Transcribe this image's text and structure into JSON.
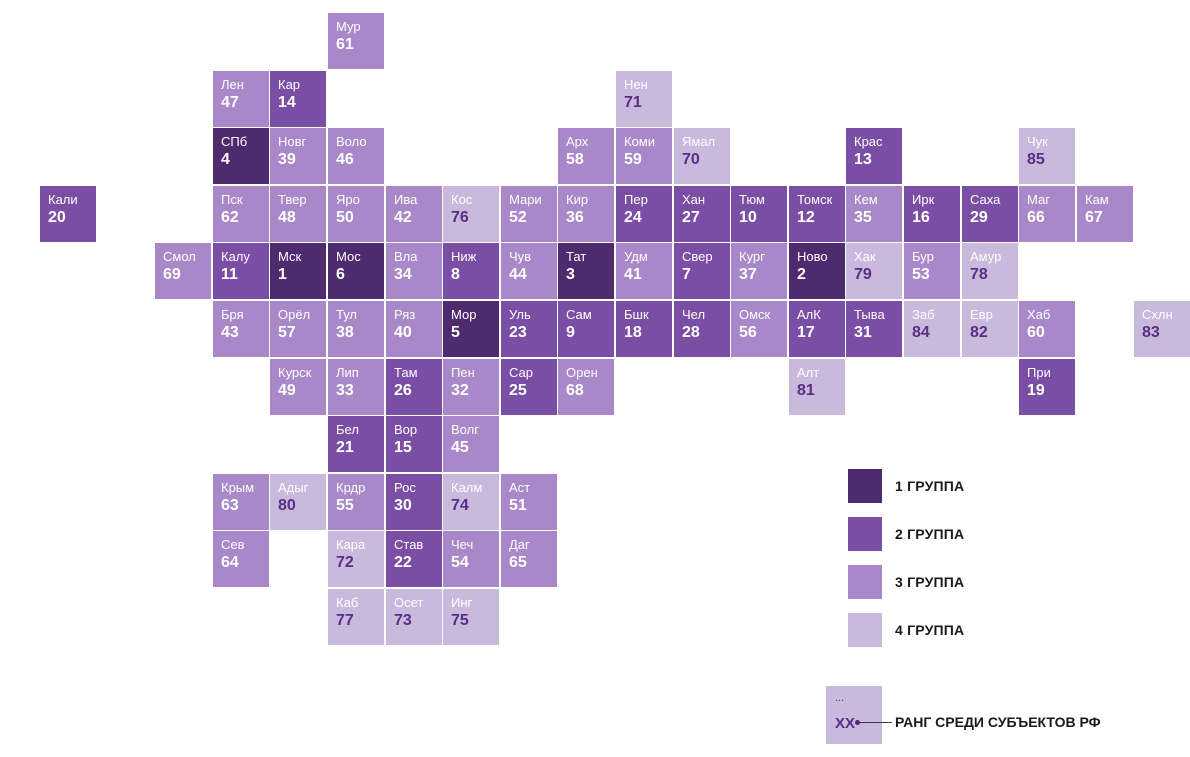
{
  "colors": {
    "group_1": "#4e2a6e",
    "group_2": "#7b4ea5",
    "group_3": "#a888c8",
    "group_4": "#c9b9dc"
  },
  "regions": [
    {
      "abbr": "Мур",
      "rank": "61",
      "group": 3,
      "col": 5,
      "row": 0
    },
    {
      "abbr": "Лен",
      "rank": "47",
      "group": 3,
      "col": 3,
      "row": 1
    },
    {
      "abbr": "Кар",
      "rank": "14",
      "group": 2,
      "col": 4,
      "row": 1
    },
    {
      "abbr": "Нен",
      "rank": "71",
      "group": 4,
      "col": 10,
      "row": 1
    },
    {
      "abbr": "СПб",
      "rank": "4",
      "group": 1,
      "col": 3,
      "row": 2
    },
    {
      "abbr": "Новг",
      "rank": "39",
      "group": 3,
      "col": 4,
      "row": 2
    },
    {
      "abbr": "Воло",
      "rank": "46",
      "group": 3,
      "col": 5,
      "row": 2
    },
    {
      "abbr": "Арх",
      "rank": "58",
      "group": 3,
      "col": 9,
      "row": 2
    },
    {
      "abbr": "Коми",
      "rank": "59",
      "group": 3,
      "col": 10,
      "row": 2
    },
    {
      "abbr": "Ямал",
      "rank": "70",
      "group": 4,
      "col": 11,
      "row": 2
    },
    {
      "abbr": "Крас",
      "rank": "13",
      "group": 2,
      "col": 14,
      "row": 2
    },
    {
      "abbr": "Чук",
      "rank": "85",
      "group": 4,
      "col": 17,
      "row": 2
    },
    {
      "abbr": "Кали",
      "rank": "20",
      "group": 2,
      "col": 0,
      "row": 3
    },
    {
      "abbr": "Пск",
      "rank": "62",
      "group": 3,
      "col": 3,
      "row": 3
    },
    {
      "abbr": "Твер",
      "rank": "48",
      "group": 3,
      "col": 4,
      "row": 3
    },
    {
      "abbr": "Яро",
      "rank": "50",
      "group": 3,
      "col": 5,
      "row": 3
    },
    {
      "abbr": "Ива",
      "rank": "42",
      "group": 3,
      "col": 6,
      "row": 3
    },
    {
      "abbr": "Кос",
      "rank": "76",
      "group": 4,
      "col": 7,
      "row": 3
    },
    {
      "abbr": "Мари",
      "rank": "52",
      "group": 3,
      "col": 8,
      "row": 3
    },
    {
      "abbr": "Кир",
      "rank": "36",
      "group": 3,
      "col": 9,
      "row": 3
    },
    {
      "abbr": "Пер",
      "rank": "24",
      "group": 2,
      "col": 10,
      "row": 3
    },
    {
      "abbr": "Хан",
      "rank": "27",
      "group": 2,
      "col": 11,
      "row": 3
    },
    {
      "abbr": "Тюм",
      "rank": "10",
      "group": 2,
      "col": 12,
      "row": 3
    },
    {
      "abbr": "Томск",
      "rank": "12",
      "group": 2,
      "col": 13,
      "row": 3
    },
    {
      "abbr": "Кем",
      "rank": "35",
      "group": 3,
      "col": 14,
      "row": 3
    },
    {
      "abbr": "Ирк",
      "rank": "16",
      "group": 2,
      "col": 15,
      "row": 3
    },
    {
      "abbr": "Саха",
      "rank": "29",
      "group": 2,
      "col": 16,
      "row": 3
    },
    {
      "abbr": "Маг",
      "rank": "66",
      "group": 3,
      "col": 17,
      "row": 3
    },
    {
      "abbr": "Кам",
      "rank": "67",
      "group": 3,
      "col": 18,
      "row": 3
    },
    {
      "abbr": "Смол",
      "rank": "69",
      "group": 3,
      "col": 2,
      "row": 4
    },
    {
      "abbr": "Калу",
      "rank": "11",
      "group": 2,
      "col": 3,
      "row": 4
    },
    {
      "abbr": "Мск",
      "rank": "1",
      "group": 1,
      "col": 4,
      "row": 4
    },
    {
      "abbr": "Мос",
      "rank": "6",
      "group": 1,
      "col": 5,
      "row": 4
    },
    {
      "abbr": "Вла",
      "rank": "34",
      "group": 3,
      "col": 6,
      "row": 4
    },
    {
      "abbr": "Ниж",
      "rank": "8",
      "group": 2,
      "col": 7,
      "row": 4
    },
    {
      "abbr": "Чув",
      "rank": "44",
      "group": 3,
      "col": 8,
      "row": 4
    },
    {
      "abbr": "Тат",
      "rank": "3",
      "group": 1,
      "col": 9,
      "row": 4
    },
    {
      "abbr": "Удм",
      "rank": "41",
      "group": 3,
      "col": 10,
      "row": 4
    },
    {
      "abbr": "Свер",
      "rank": "7",
      "group": 2,
      "col": 11,
      "row": 4
    },
    {
      "abbr": "Кург",
      "rank": "37",
      "group": 3,
      "col": 12,
      "row": 4
    },
    {
      "abbr": "Ново",
      "rank": "2",
      "group": 1,
      "col": 13,
      "row": 4
    },
    {
      "abbr": "Хак",
      "rank": "79",
      "group": 4,
      "col": 14,
      "row": 4
    },
    {
      "abbr": "Бур",
      "rank": "53",
      "group": 3,
      "col": 15,
      "row": 4
    },
    {
      "abbr": "Амур",
      "rank": "78",
      "group": 4,
      "col": 16,
      "row": 4
    },
    {
      "abbr": "Бря",
      "rank": "43",
      "group": 3,
      "col": 3,
      "row": 5
    },
    {
      "abbr": "Орёл",
      "rank": "57",
      "group": 3,
      "col": 4,
      "row": 5
    },
    {
      "abbr": "Тул",
      "rank": "38",
      "group": 3,
      "col": 5,
      "row": 5
    },
    {
      "abbr": "Ряз",
      "rank": "40",
      "group": 3,
      "col": 6,
      "row": 5
    },
    {
      "abbr": "Мор",
      "rank": "5",
      "group": 1,
      "col": 7,
      "row": 5
    },
    {
      "abbr": "Уль",
      "rank": "23",
      "group": 2,
      "col": 8,
      "row": 5
    },
    {
      "abbr": "Сам",
      "rank": "9",
      "group": 2,
      "col": 9,
      "row": 5
    },
    {
      "abbr": "Бшк",
      "rank": "18",
      "group": 2,
      "col": 10,
      "row": 5
    },
    {
      "abbr": "Чел",
      "rank": "28",
      "group": 2,
      "col": 11,
      "row": 5
    },
    {
      "abbr": "Омск",
      "rank": "56",
      "group": 3,
      "col": 12,
      "row": 5
    },
    {
      "abbr": "АлК",
      "rank": "17",
      "group": 2,
      "col": 13,
      "row": 5
    },
    {
      "abbr": "Тыва",
      "rank": "31",
      "group": 2,
      "col": 14,
      "row": 5
    },
    {
      "abbr": "Заб",
      "rank": "84",
      "group": 4,
      "col": 15,
      "row": 5
    },
    {
      "abbr": "Евр",
      "rank": "82",
      "group": 4,
      "col": 16,
      "row": 5
    },
    {
      "abbr": "Хаб",
      "rank": "60",
      "group": 3,
      "col": 17,
      "row": 5
    },
    {
      "abbr": "Схлн",
      "rank": "83",
      "group": 4,
      "col": 19,
      "row": 5
    },
    {
      "abbr": "Курск",
      "rank": "49",
      "group": 3,
      "col": 4,
      "row": 6
    },
    {
      "abbr": "Лип",
      "rank": "33",
      "group": 3,
      "col": 5,
      "row": 6
    },
    {
      "abbr": "Там",
      "rank": "26",
      "group": 2,
      "col": 6,
      "row": 6
    },
    {
      "abbr": "Пен",
      "rank": "32",
      "group": 3,
      "col": 7,
      "row": 6
    },
    {
      "abbr": "Сар",
      "rank": "25",
      "group": 2,
      "col": 8,
      "row": 6
    },
    {
      "abbr": "Орен",
      "rank": "68",
      "group": 3,
      "col": 9,
      "row": 6
    },
    {
      "abbr": "Алт",
      "rank": "81",
      "group": 4,
      "col": 13,
      "row": 6
    },
    {
      "abbr": "При",
      "rank": "19",
      "group": 2,
      "col": 17,
      "row": 6
    },
    {
      "abbr": "Бел",
      "rank": "21",
      "group": 2,
      "col": 5,
      "row": 7
    },
    {
      "abbr": "Вор",
      "rank": "15",
      "group": 2,
      "col": 6,
      "row": 7
    },
    {
      "abbr": "Волг",
      "rank": "45",
      "group": 3,
      "col": 7,
      "row": 7
    },
    {
      "abbr": "Крым",
      "rank": "63",
      "group": 3,
      "col": 3,
      "row": 8
    },
    {
      "abbr": "Адыг",
      "rank": "80",
      "group": 4,
      "col": 4,
      "row": 8
    },
    {
      "abbr": "Крдр",
      "rank": "55",
      "group": 3,
      "col": 5,
      "row": 8
    },
    {
      "abbr": "Рос",
      "rank": "30",
      "group": 2,
      "col": 6,
      "row": 8
    },
    {
      "abbr": "Калм",
      "rank": "74",
      "group": 4,
      "col": 7,
      "row": 8
    },
    {
      "abbr": "Аст",
      "rank": "51",
      "group": 3,
      "col": 8,
      "row": 8
    },
    {
      "abbr": "Сев",
      "rank": "64",
      "group": 3,
      "col": 3,
      "row": 9
    },
    {
      "abbr": "Кара",
      "rank": "72",
      "group": 4,
      "col": 5,
      "row": 9
    },
    {
      "abbr": "Став",
      "rank": "22",
      "group": 2,
      "col": 6,
      "row": 9
    },
    {
      "abbr": "Чеч",
      "rank": "54",
      "group": 3,
      "col": 7,
      "row": 9
    },
    {
      "abbr": "Даг",
      "rank": "65",
      "group": 3,
      "col": 8,
      "row": 9
    },
    {
      "abbr": "Каб",
      "rank": "77",
      "group": 4,
      "col": 5,
      "row": 10
    },
    {
      "abbr": "Осет",
      "rank": "73",
      "group": 4,
      "col": 6,
      "row": 10
    },
    {
      "abbr": "Инг",
      "rank": "75",
      "group": 4,
      "col": 7,
      "row": 10
    }
  ],
  "legend": [
    {
      "label": "1 ГРУППА",
      "group": 1
    },
    {
      "label": "2 ГРУППА",
      "group": 2
    },
    {
      "label": "3 ГРУППА",
      "group": 3
    },
    {
      "label": "4 ГРУППА",
      "group": 4
    }
  ],
  "rank_key": {
    "dots": "...",
    "placeholder": "XX",
    "label": "РАНГ СРЕДИ СУБЪЕКТОВ РФ"
  }
}
